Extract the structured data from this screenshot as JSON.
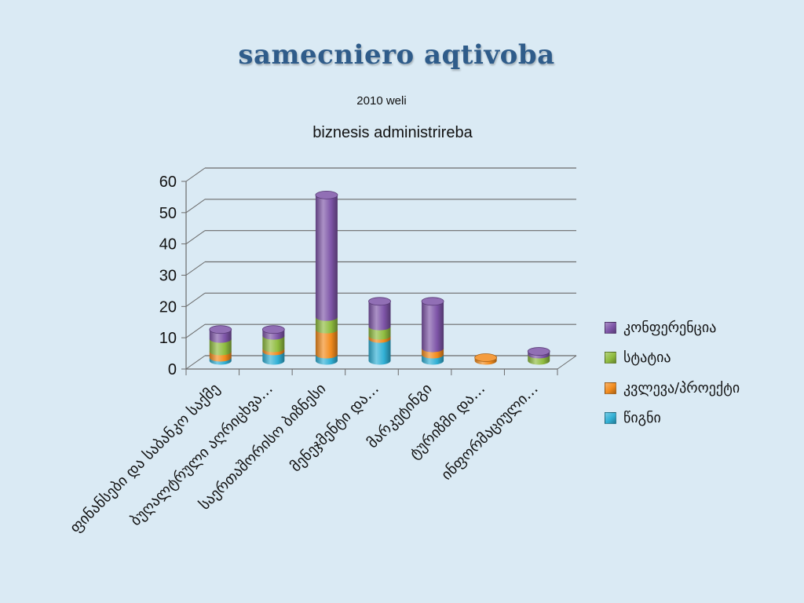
{
  "slide": {
    "title": "samecniero aqtivoba",
    "subtitle": "2010 weli"
  },
  "chart_data": {
    "type": "bar",
    "stacked": true,
    "three_d": "cylinder",
    "title": "biznesis administrireba",
    "categories": [
      "ფინანსები და საბანკო საქმე",
      "ბუღალტრული აღრიცხვა…",
      "საერთაშორისო ბიზნესი",
      "მენეჯმენტი და…",
      "მარკეტინგი",
      "ტურიზმი და…",
      "ინფორმაციული…"
    ],
    "series": [
      {
        "name": "წიგნი",
        "color": "#31b0d5",
        "values": [
          1,
          3,
          2,
          7,
          2,
          0,
          0
        ]
      },
      {
        "name": "კვლევა/პროექტი",
        "color": "#f28b1d",
        "values": [
          2,
          1,
          8,
          1,
          2,
          1,
          0
        ]
      },
      {
        "name": "სტატია",
        "color": "#8fbc3f",
        "values": [
          4,
          4,
          4,
          3,
          0,
          0,
          2
        ]
      },
      {
        "name": "კონფერენცია",
        "color": "#7e55a8",
        "values": [
          3,
          2,
          39,
          8,
          15,
          0,
          1
        ]
      }
    ],
    "legend_order": [
      "კონფერენცია",
      "სტატია",
      "კვლევა/პროექტი",
      "წიგნი"
    ],
    "ylim": [
      0,
      60
    ],
    "yticks": [
      0,
      10,
      20,
      30,
      40,
      50,
      60
    ],
    "grid": true,
    "legend_position": "right"
  }
}
